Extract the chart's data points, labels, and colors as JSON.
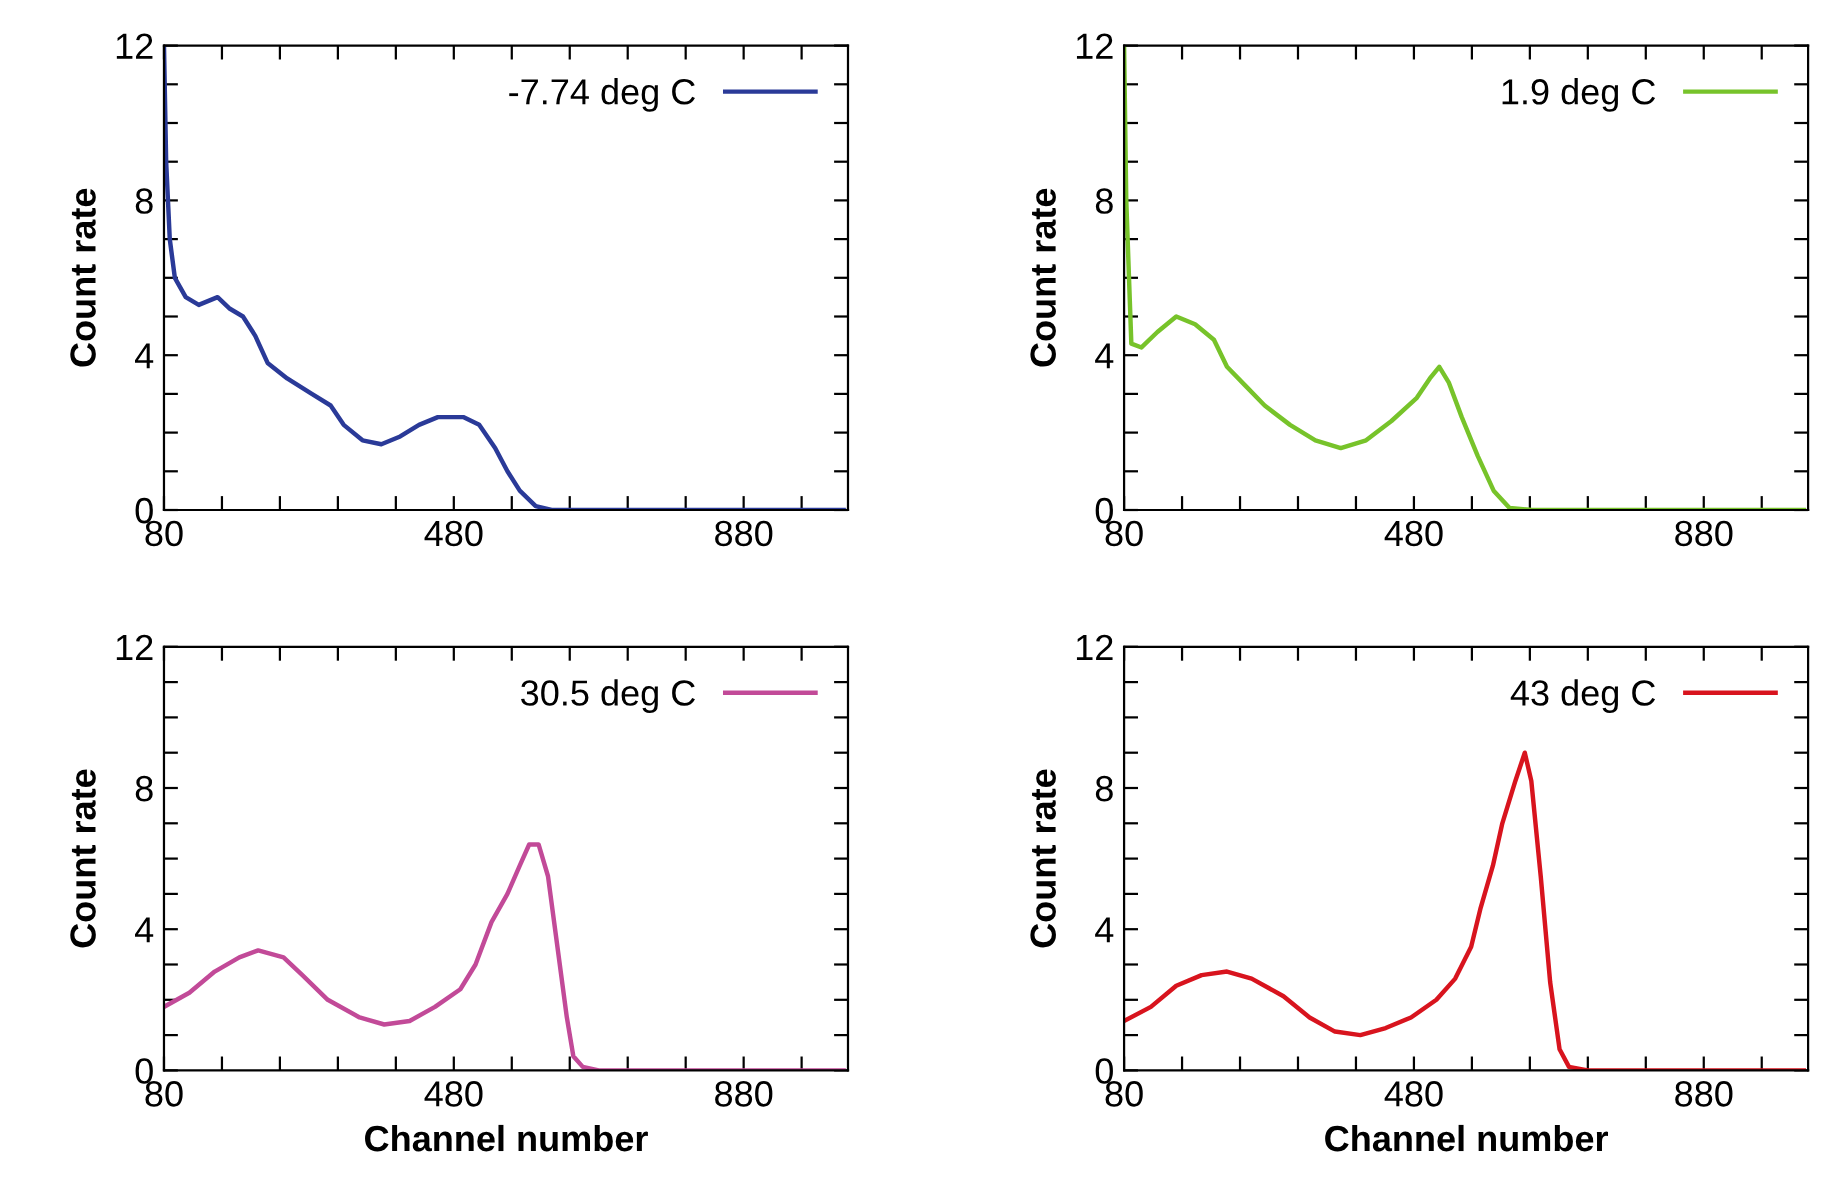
{
  "chart_data": [
    {
      "type": "line",
      "ylabel": "Count rate",
      "xlim": [
        80,
        1024
      ],
      "ylim": [
        0,
        12
      ],
      "xticks": [
        80,
        {
          "value": 160,
          "label": null
        },
        {
          "value": 240,
          "label": null
        },
        {
          "value": 320,
          "label": null
        },
        {
          "value": 400,
          "label": null
        },
        480,
        {
          "value": 560,
          "label": null
        },
        {
          "value": 640,
          "label": null
        },
        {
          "value": 720,
          "label": null
        },
        {
          "value": 800,
          "label": null
        },
        880,
        {
          "value": 960,
          "label": null
        }
      ],
      "yticks": [
        0,
        {
          "value": 1,
          "label": null
        },
        {
          "value": 2,
          "label": null
        },
        {
          "value": 3,
          "label": null
        },
        4,
        {
          "value": 5,
          "label": null
        },
        {
          "value": 6,
          "label": null
        },
        {
          "value": 7,
          "label": null
        },
        8,
        {
          "value": 9,
          "label": null
        },
        {
          "value": 10,
          "label": null
        },
        {
          "value": 11,
          "label": null
        },
        12
      ],
      "legend": "top right",
      "line_style": "solid",
      "marker": "none",
      "series": [
        {
          "name": "-7.74 deg C",
          "color": "#2a3a98",
          "x": [
            80,
            83,
            88,
            95,
            110,
            128,
            154,
            171,
            189,
            206,
            223,
            250,
            284,
            310,
            328,
            354,
            380,
            406,
            432,
            458,
            493,
            515,
            537,
            554,
            571,
            593,
            615,
            700,
            800,
            900,
            1018
          ],
          "values": [
            12,
            9,
            7,
            6,
            5.5,
            5.3,
            5.5,
            5.2,
            5.0,
            4.5,
            3.8,
            3.4,
            3.0,
            2.7,
            2.2,
            1.8,
            1.7,
            1.9,
            2.2,
            2.4,
            2.4,
            2.2,
            1.6,
            1.0,
            0.5,
            0.1,
            0,
            0,
            0,
            0,
            0
          ]
        }
      ]
    },
    {
      "type": "line",
      "ylabel": "Count rate",
      "xlim": [
        80,
        1024
      ],
      "ylim": [
        0,
        12
      ],
      "xticks": [
        80,
        {
          "value": 160,
          "label": null
        },
        {
          "value": 240,
          "label": null
        },
        {
          "value": 320,
          "label": null
        },
        {
          "value": 400,
          "label": null
        },
        480,
        {
          "value": 560,
          "label": null
        },
        {
          "value": 640,
          "label": null
        },
        {
          "value": 720,
          "label": null
        },
        {
          "value": 800,
          "label": null
        },
        880,
        {
          "value": 960,
          "label": null
        }
      ],
      "yticks": [
        0,
        {
          "value": 1,
          "label": null
        },
        {
          "value": 2,
          "label": null
        },
        {
          "value": 3,
          "label": null
        },
        4,
        {
          "value": 5,
          "label": null
        },
        {
          "value": 6,
          "label": null
        },
        {
          "value": 7,
          "label": null
        },
        8,
        {
          "value": 9,
          "label": null
        },
        {
          "value": 10,
          "label": null
        },
        {
          "value": 11,
          "label": null
        },
        12
      ],
      "legend": "top right",
      "line_style": "solid",
      "marker": "none",
      "series": [
        {
          "name": "1.9 deg C",
          "color": "#77c32a",
          "x": [
            80,
            83,
            90,
            104,
            126,
            152,
            178,
            204,
            222,
            248,
            274,
            309,
            344,
            379,
            414,
            449,
            484,
            502,
            515,
            528,
            546,
            568,
            590,
            612,
            643,
            750,
            850,
            950,
            1018
          ],
          "values": [
            12,
            8,
            4.3,
            4.2,
            4.6,
            5.0,
            4.8,
            4.4,
            3.7,
            3.2,
            2.7,
            2.2,
            1.8,
            1.6,
            1.8,
            2.3,
            2.9,
            3.4,
            3.7,
            3.3,
            2.4,
            1.4,
            0.5,
            0.05,
            0,
            0,
            0,
            0,
            0
          ]
        }
      ]
    },
    {
      "type": "line",
      "ylabel": "Count rate",
      "xlabel": "Channel number",
      "xlim": [
        80,
        1024
      ],
      "ylim": [
        0,
        12
      ],
      "xticks": [
        80,
        {
          "value": 160,
          "label": null
        },
        {
          "value": 240,
          "label": null
        },
        {
          "value": 320,
          "label": null
        },
        {
          "value": 400,
          "label": null
        },
        480,
        {
          "value": 560,
          "label": null
        },
        {
          "value": 640,
          "label": null
        },
        {
          "value": 720,
          "label": null
        },
        {
          "value": 800,
          "label": null
        },
        880,
        {
          "value": 960,
          "label": null
        }
      ],
      "yticks": [
        0,
        {
          "value": 1,
          "label": null
        },
        {
          "value": 2,
          "label": null
        },
        {
          "value": 3,
          "label": null
        },
        4,
        {
          "value": 5,
          "label": null
        },
        {
          "value": 6,
          "label": null
        },
        {
          "value": 7,
          "label": null
        },
        8,
        {
          "value": 9,
          "label": null
        },
        {
          "value": 10,
          "label": null
        },
        {
          "value": 11,
          "label": null
        },
        12
      ],
      "legend": "top right",
      "line_style": "solid",
      "marker": "none",
      "series": [
        {
          "name": "30.5 deg C",
          "color": "#c24a98",
          "x": [
            80,
            115,
            150,
            184,
            210,
            245,
            271,
            306,
            350,
            384,
            419,
            454,
            489,
            510,
            532,
            554,
            571,
            584,
            597,
            610,
            623,
            636,
            645,
            658,
            680,
            780,
            880,
            1018
          ],
          "values": [
            1.8,
            2.2,
            2.8,
            3.2,
            3.4,
            3.2,
            2.7,
            2.0,
            1.5,
            1.3,
            1.4,
            1.8,
            2.3,
            3.0,
            4.2,
            5.0,
            5.8,
            6.4,
            6.4,
            5.5,
            3.5,
            1.5,
            0.4,
            0.1,
            0,
            0,
            0,
            0
          ]
        }
      ]
    },
    {
      "type": "line",
      "ylabel": "Count rate",
      "xlabel": "Channel number",
      "xlim": [
        80,
        1024
      ],
      "ylim": [
        0,
        12
      ],
      "xticks": [
        80,
        {
          "value": 160,
          "label": null
        },
        {
          "value": 240,
          "label": null
        },
        {
          "value": 320,
          "label": null
        },
        {
          "value": 400,
          "label": null
        },
        480,
        {
          "value": 560,
          "label": null
        },
        {
          "value": 640,
          "label": null
        },
        {
          "value": 720,
          "label": null
        },
        {
          "value": 800,
          "label": null
        },
        880,
        {
          "value": 960,
          "label": null
        }
      ],
      "yticks": [
        0,
        {
          "value": 1,
          "label": null
        },
        {
          "value": 2,
          "label": null
        },
        {
          "value": 3,
          "label": null
        },
        4,
        {
          "value": 5,
          "label": null
        },
        {
          "value": 6,
          "label": null
        },
        {
          "value": 7,
          "label": null
        },
        8,
        {
          "value": 9,
          "label": null
        },
        {
          "value": 10,
          "label": null
        },
        {
          "value": 11,
          "label": null
        },
        12
      ],
      "legend": "top right",
      "line_style": "solid",
      "marker": "none",
      "series": [
        {
          "name": "43 deg C",
          "color": "#d8141e",
          "x": [
            80,
            117,
            152,
            187,
            222,
            256,
            300,
            336,
            371,
            406,
            441,
            476,
            511,
            537,
            559,
            572,
            589,
            602,
            620,
            633,
            642,
            655,
            668,
            681,
            694,
            720,
            800,
            900,
            1018
          ],
          "values": [
            1.4,
            1.8,
            2.4,
            2.7,
            2.8,
            2.6,
            2.1,
            1.5,
            1.1,
            1.0,
            1.2,
            1.5,
            2.0,
            2.6,
            3.5,
            4.6,
            5.8,
            7.0,
            8.2,
            9.0,
            8.2,
            5.5,
            2.5,
            0.6,
            0.1,
            0,
            0,
            0,
            0
          ]
        }
      ]
    }
  ]
}
